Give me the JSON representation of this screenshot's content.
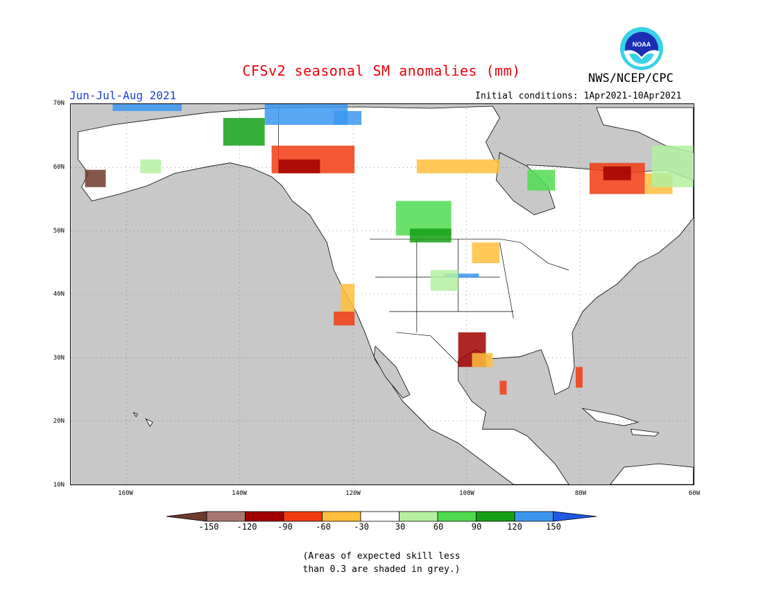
{
  "title": "CFSv2 seasonal SM anomalies (mm)",
  "season": "Jun-Jul-Aug 2021",
  "initial_conditions": "Initial conditions: 1Apr2021-10Apr2021",
  "agency": "NWS/NCEP/CPC",
  "logo_text": "NOAA",
  "map": {
    "lon_range": [
      "172W",
      "60W"
    ],
    "lat_range": [
      "10N",
      "70N"
    ],
    "lat_labels": [
      "70N",
      "60N",
      "50N",
      "40N",
      "30N",
      "20N",
      "10N"
    ],
    "lon_labels": [
      "160W",
      "140W",
      "120W",
      "100W",
      "80W",
      "60W"
    ],
    "grid": "dotted",
    "ocean_color": "#c8c8c8",
    "land_color": "#ffffff"
  },
  "colorbar": {
    "labels": [
      "-150",
      "-120",
      "-90",
      "-60",
      "-30",
      "30",
      "60",
      "90",
      "120",
      "150"
    ],
    "colors": [
      "#6e3a2c",
      "#a87870",
      "#a00000",
      "#f03c10",
      "#ffbe3c",
      "#ffffff",
      "#b4f0a0",
      "#50dc50",
      "#14a014",
      "#3c96f0",
      "#1e5ae6"
    ]
  },
  "note": {
    "line1": "(Areas of expected skill less",
    "line2": "than 0.3 are shaded in grey.)"
  }
}
